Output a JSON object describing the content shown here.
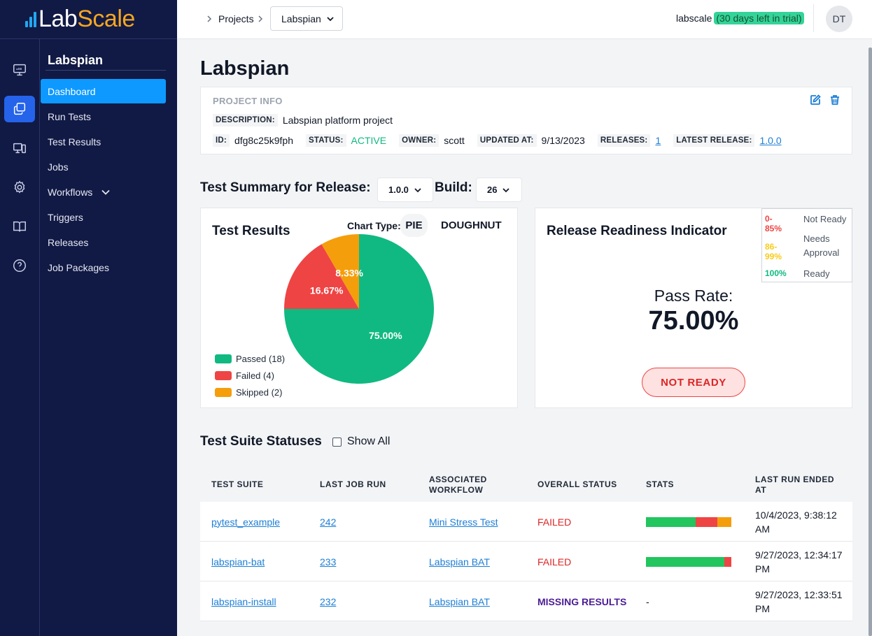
{
  "logo": {
    "part1": "Lab",
    "part2": "Scale"
  },
  "topbar": {
    "breadcrumb_root": "Projects",
    "project_select": "Labspian",
    "org": "labscale",
    "trial": "(30 days left in trial)",
    "avatar": "DT"
  },
  "sidebar": {
    "title": "Labspian",
    "items": [
      {
        "label": "Dashboard"
      },
      {
        "label": "Run Tests"
      },
      {
        "label": "Test Results"
      },
      {
        "label": "Jobs"
      },
      {
        "label": "Workflows"
      },
      {
        "label": "Triggers"
      },
      {
        "label": "Releases"
      },
      {
        "label": "Job Packages"
      }
    ]
  },
  "page": {
    "title": "Labspian"
  },
  "project_info": {
    "heading": "PROJECT INFO",
    "description_label": "DESCRIPTION:",
    "description": "Labspian platform project",
    "id_label": "ID:",
    "id": "dfg8c25k9fph",
    "status_label": "STATUS:",
    "status": "ACTIVE",
    "owner_label": "OWNER:",
    "owner": "scott",
    "updated_label": "UPDATED AT:",
    "updated": "9/13/2023",
    "releases_label": "RELEASES:",
    "releases": "1",
    "latest_label": "LATEST RELEASE:",
    "latest": "1.0.0"
  },
  "summary": {
    "title": "Test Summary for Release:",
    "release": "1.0.0",
    "build_label": "Build:",
    "build": "26"
  },
  "results": {
    "title": "Test Results",
    "chart_type_label": "Chart Type:",
    "chart_type_pie": "PIE",
    "chart_type_doughnut": "DOUGHNUT"
  },
  "chart_data": {
    "type": "pie",
    "categories": [
      "Passed",
      "Failed",
      "Skipped"
    ],
    "values": [
      18,
      4,
      2
    ],
    "percent_labels": [
      "75.00%",
      "16.67%",
      "8.33%"
    ],
    "legend": [
      "Passed (18)",
      "Failed (4)",
      "Skipped (2)"
    ],
    "colors": [
      "#10b981",
      "#ef4444",
      "#f59e0b"
    ],
    "legend_placement": "bottom-left"
  },
  "readiness": {
    "title": "Release Readiness Indicator",
    "thresholds": [
      {
        "range": "0-85%",
        "label": "Not Ready",
        "color": "#ef4444"
      },
      {
        "range": "86-99%",
        "label": "Needs Approval",
        "color": "#facc15"
      },
      {
        "range": "100%",
        "label": "Ready",
        "color": "#10b981"
      }
    ],
    "pass_label": "Pass Rate:",
    "pass_rate": "75.00%",
    "status": "NOT READY"
  },
  "suites": {
    "title": "Test Suite Statuses",
    "show_all": "Show All",
    "columns": [
      "TEST SUITE",
      "LAST JOB RUN",
      "ASSOCIATED WORKFLOW",
      "OVERALL STATUS",
      "STATS",
      "LAST RUN ENDED AT"
    ],
    "rows": [
      {
        "suite": "pytest_example",
        "job": "242",
        "workflow": "Mini Stress Test",
        "status": "FAILED",
        "stats": {
          "passed": 7,
          "failed": 3,
          "skipped": 2
        },
        "ended": "10/4/2023, 9:38:12 AM"
      },
      {
        "suite": "labspian-bat",
        "job": "233",
        "workflow": "Labspian BAT",
        "status": "FAILED",
        "stats": {
          "passed": 11,
          "failed": 1,
          "skipped": 0
        },
        "ended": "9/27/2023, 12:34:17 PM"
      },
      {
        "suite": "labspian-install",
        "job": "232",
        "workflow": "Labspian BAT",
        "status": "MISSING RESULTS",
        "stats_text": "-",
        "ended": "9/27/2023, 12:33:51 PM"
      }
    ]
  }
}
